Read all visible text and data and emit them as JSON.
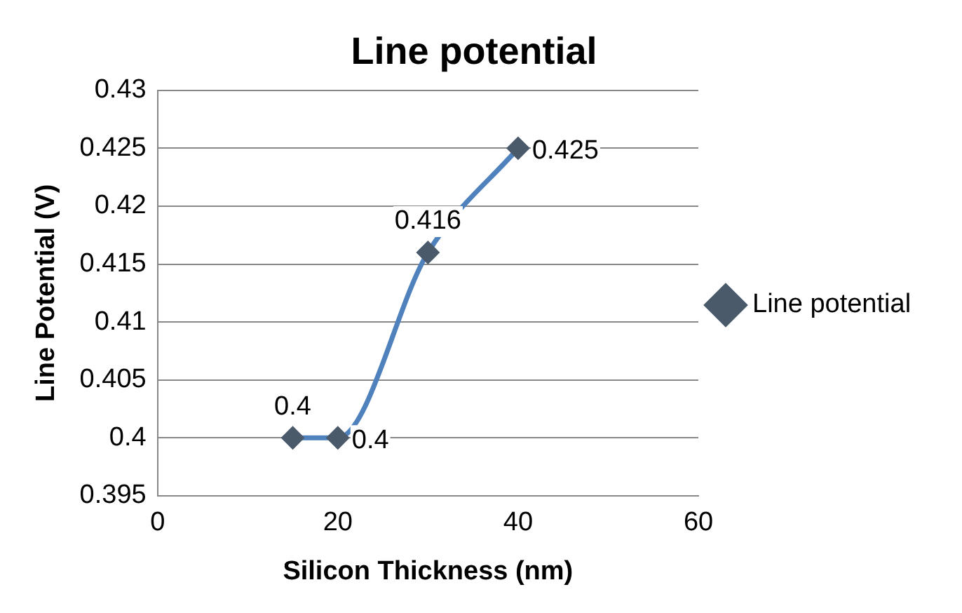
{
  "chart_data": {
    "type": "line",
    "title": "Line potential",
    "xlabel": "Silicon Thickness (nm)",
    "ylabel": "Line Potential (V)",
    "x": [
      15,
      20,
      30,
      40
    ],
    "series": [
      {
        "name": "Line potential",
        "color": "#4f81bd",
        "values": [
          0.4,
          0.4,
          0.416,
          0.425
        ]
      }
    ],
    "xlim": [
      0,
      60
    ],
    "xticks": [
      0,
      20,
      40,
      60
    ],
    "ylim": [
      0.395,
      0.43
    ],
    "yticks": [
      0.395,
      0.4,
      0.405,
      0.41,
      0.415,
      0.42,
      0.425,
      0.43
    ],
    "grid": "y",
    "legend": "right",
    "marker": "diamond",
    "data_labels": true
  }
}
